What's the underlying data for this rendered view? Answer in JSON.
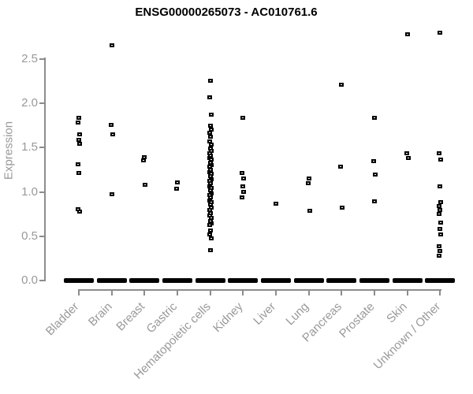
{
  "colors": {
    "background": "#ffffff",
    "title": "#000000",
    "axis": "#8c8c8c",
    "tick_text": "#999999",
    "marker": "#000000"
  },
  "chart_data": {
    "type": "scatter",
    "title": "ENSG00000265073 - AC010761.6",
    "xlabel": "",
    "ylabel": "Expression",
    "ylim": [
      0,
      2.8
    ],
    "grid": false,
    "legend": false,
    "yticks": [
      0,
      0.5,
      1,
      1.5,
      2,
      2.5
    ],
    "ytick_labels": [
      "0.0",
      "0.5",
      "1.0",
      "1.5",
      "2.0",
      "2.5"
    ],
    "categories": [
      "Bladder",
      "Brain",
      "Breast",
      "Gastric",
      "Hematopoietic cells",
      "Kidney",
      "Liver",
      "Lung",
      "Pancreas",
      "Prostate",
      "Skin",
      "Unknown / Other"
    ],
    "series": [
      {
        "name": "Bladder",
        "zero_bar": true,
        "values": [
          1.83,
          1.78,
          1.65,
          1.58,
          1.54,
          1.31,
          1.21,
          0.8,
          0.77
        ]
      },
      {
        "name": "Brain",
        "zero_bar": true,
        "values": [
          2.65,
          1.75,
          1.65,
          0.97
        ]
      },
      {
        "name": "Breast",
        "zero_bar": true,
        "values": [
          1.39,
          1.35,
          1.08
        ]
      },
      {
        "name": "Gastric",
        "zero_bar": true,
        "values": [
          1.1,
          1.03
        ]
      },
      {
        "name": "Hematopoietic cells",
        "zero_bar": true,
        "values": [
          2.25,
          2.06,
          1.87,
          1.74,
          1.7,
          1.66,
          1.62,
          1.57,
          1.53,
          1.49,
          1.46,
          1.43,
          1.41,
          1.38,
          1.36,
          1.33,
          1.3,
          1.28,
          1.25,
          1.22,
          1.2,
          1.17,
          1.14,
          1.12,
          1.09,
          1.06,
          1.04,
          1.01,
          0.98,
          0.96,
          0.93,
          0.9,
          0.88,
          0.85,
          0.82,
          0.79,
          0.76,
          0.73,
          0.7,
          0.67,
          0.64,
          0.62,
          0.56,
          0.52,
          0.47,
          0.34
        ]
      },
      {
        "name": "Kidney",
        "zero_bar": true,
        "values": [
          1.83,
          1.21,
          1.15,
          1.06,
          1.0,
          0.93
        ]
      },
      {
        "name": "Liver",
        "zero_bar": true,
        "values": [
          0.86
        ]
      },
      {
        "name": "Lung",
        "zero_bar": true,
        "values": [
          1.15,
          1.09,
          0.78
        ]
      },
      {
        "name": "Pancreas",
        "zero_bar": true,
        "values": [
          2.21,
          1.28,
          0.82
        ]
      },
      {
        "name": "Prostate",
        "zero_bar": true,
        "values": [
          1.83,
          1.34,
          1.19,
          0.89
        ]
      },
      {
        "name": "Skin",
        "zero_bar": true,
        "values": [
          2.78,
          1.43,
          1.38
        ]
      },
      {
        "name": "Unknown / Other",
        "zero_bar": true,
        "values": [
          2.79,
          1.43,
          1.36,
          1.06,
          0.88,
          0.84,
          0.79,
          0.75,
          0.65,
          0.58,
          0.52,
          0.38,
          0.33,
          0.28
        ]
      }
    ]
  }
}
